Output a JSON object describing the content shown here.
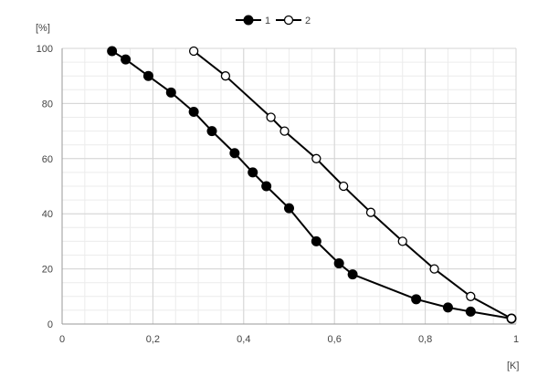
{
  "chart_data": {
    "type": "line",
    "title": "",
    "xlabel": "[K]",
    "ylabel": "[%]",
    "xlim": [
      0,
      1
    ],
    "ylim": [
      0,
      100
    ],
    "x_ticks": [
      {
        "value": 0,
        "label": "0"
      },
      {
        "value": 0.2,
        "label": "0,2"
      },
      {
        "value": 0.4,
        "label": "0,4"
      },
      {
        "value": 0.6,
        "label": "0,6"
      },
      {
        "value": 0.8,
        "label": "0,8"
      },
      {
        "value": 1,
        "label": "1"
      }
    ],
    "y_ticks": [
      {
        "value": 0,
        "label": "0"
      },
      {
        "value": 20,
        "label": "20"
      },
      {
        "value": 40,
        "label": "40"
      },
      {
        "value": 60,
        "label": "60"
      },
      {
        "value": 80,
        "label": "80"
      },
      {
        "value": 100,
        "label": "100"
      }
    ],
    "grid": true,
    "legend_position": "top-center",
    "series": [
      {
        "name": "1",
        "marker": "filled-circle",
        "color": "#000000",
        "x": [
          0.11,
          0.14,
          0.19,
          0.24,
          0.29,
          0.33,
          0.38,
          0.42,
          0.45,
          0.5,
          0.56,
          0.61,
          0.64,
          0.78,
          0.85,
          0.9,
          0.99
        ],
        "y": [
          99,
          96,
          90,
          84,
          77,
          70,
          62,
          55,
          50,
          42,
          30,
          22,
          18,
          9,
          6,
          4.5,
          2
        ]
      },
      {
        "name": "2",
        "marker": "open-circle",
        "color": "#000000",
        "x": [
          0.29,
          0.36,
          0.46,
          0.49,
          0.56,
          0.62,
          0.68,
          0.75,
          0.82,
          0.9,
          0.99
        ],
        "y": [
          99,
          90,
          75,
          70,
          60,
          50,
          40.5,
          30,
          20,
          10,
          2
        ]
      }
    ]
  }
}
